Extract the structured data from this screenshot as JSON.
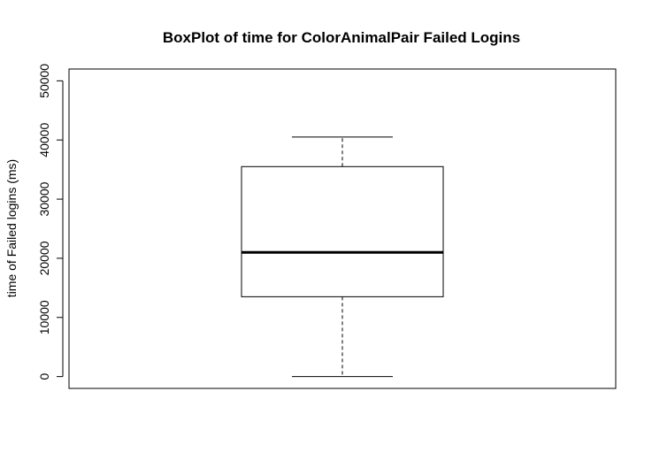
{
  "chart_data": {
    "type": "boxplot",
    "title": "BoxPlot of time for ColorAnimalPair Failed Logins",
    "xlabel": "",
    "ylabel": "time of Failed logins (ms)",
    "ylim": [
      -2000,
      52000
    ],
    "yticks": [
      0,
      10000,
      20000,
      30000,
      40000,
      50000
    ],
    "ytick_labels": [
      "0",
      "10000",
      "20000",
      "30000",
      "40000",
      "50000"
    ],
    "grid": false,
    "legend": "none",
    "series": [
      {
        "min": 0,
        "q1": 13500,
        "median": 21000,
        "q3": 35500,
        "max": 40500
      }
    ]
  }
}
